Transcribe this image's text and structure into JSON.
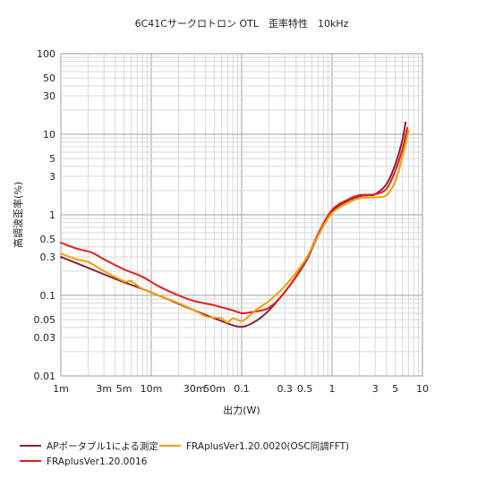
{
  "chart_data": {
    "type": "line",
    "title": "6C41Cサークロトロン OTL　歪率特性　10kHz",
    "xlabel": "出力(W)",
    "ylabel": "高調波歪率(%)",
    "xscale": "log",
    "yscale": "log",
    "xlim": [
      0.001,
      10
    ],
    "ylim": [
      0.01,
      100
    ],
    "grid": true,
    "legend_position": "bottom",
    "x_ticks": [
      {
        "v": 0.001,
        "label": "1m"
      },
      {
        "v": 0.003,
        "label": "3m"
      },
      {
        "v": 0.005,
        "label": "5m"
      },
      {
        "v": 0.01,
        "label": "10m"
      },
      {
        "v": 0.03,
        "label": "30m"
      },
      {
        "v": 0.05,
        "label": "50m"
      },
      {
        "v": 0.1,
        "label": "0.1"
      },
      {
        "v": 0.3,
        "label": "0.3"
      },
      {
        "v": 0.5,
        "label": "0.5"
      },
      {
        "v": 1,
        "label": "1"
      },
      {
        "v": 3,
        "label": "3"
      },
      {
        "v": 5,
        "label": "5"
      },
      {
        "v": 10,
        "label": "10"
      }
    ],
    "y_ticks": [
      {
        "v": 0.01,
        "label": "0.01"
      },
      {
        "v": 0.03,
        "label": "0.03"
      },
      {
        "v": 0.05,
        "label": "0.05"
      },
      {
        "v": 0.1,
        "label": "0.1"
      },
      {
        "v": 0.3,
        "label": "0.3"
      },
      {
        "v": 0.5,
        "label": "0.5"
      },
      {
        "v": 1,
        "label": "1"
      },
      {
        "v": 3,
        "label": "3"
      },
      {
        "v": 5,
        "label": "5"
      },
      {
        "v": 10,
        "label": "10"
      },
      {
        "v": 30,
        "label": "30"
      },
      {
        "v": 50,
        "label": "50"
      },
      {
        "v": 100,
        "label": "100"
      }
    ],
    "series": [
      {
        "name": "APポータブル1による測定",
        "color": "#8b2232",
        "points": [
          [
            0.001,
            0.3
          ],
          [
            0.002,
            0.22
          ],
          [
            0.004,
            0.16
          ],
          [
            0.008,
            0.12
          ],
          [
            0.015,
            0.09
          ],
          [
            0.03,
            0.065
          ],
          [
            0.06,
            0.048
          ],
          [
            0.09,
            0.041
          ],
          [
            0.12,
            0.043
          ],
          [
            0.18,
            0.058
          ],
          [
            0.3,
            0.11
          ],
          [
            0.5,
            0.25
          ],
          [
            0.7,
            0.55
          ],
          [
            1,
            1.1
          ],
          [
            1.5,
            1.5
          ],
          [
            2,
            1.7
          ],
          [
            2.5,
            1.75
          ],
          [
            3,
            1.8
          ],
          [
            4,
            2.4
          ],
          [
            5,
            4.2
          ],
          [
            6,
            8.5
          ],
          [
            6.5,
            14
          ]
        ]
      },
      {
        "name": "FRAplusVer1.20.0016",
        "color": "#e81c1c",
        "points": [
          [
            0.001,
            0.45
          ],
          [
            0.0015,
            0.38
          ],
          [
            0.0022,
            0.34
          ],
          [
            0.003,
            0.28
          ],
          [
            0.005,
            0.21
          ],
          [
            0.008,
            0.17
          ],
          [
            0.012,
            0.13
          ],
          [
            0.02,
            0.1
          ],
          [
            0.03,
            0.085
          ],
          [
            0.05,
            0.075
          ],
          [
            0.08,
            0.065
          ],
          [
            0.1,
            0.06
          ],
          [
            0.13,
            0.062
          ],
          [
            0.2,
            0.07
          ],
          [
            0.3,
            0.11
          ],
          [
            0.5,
            0.26
          ],
          [
            0.7,
            0.58
          ],
          [
            1,
            1.15
          ],
          [
            1.5,
            1.55
          ],
          [
            2,
            1.75
          ],
          [
            3,
            1.8
          ],
          [
            4,
            2.1
          ],
          [
            5,
            3.5
          ],
          [
            6,
            6.5
          ],
          [
            6.8,
            12
          ]
        ]
      },
      {
        "name": "FRAplusVer1.20.0020(OSC同調FFT)",
        "color": "#f0a000",
        "points": [
          [
            0.001,
            0.33
          ],
          [
            0.0015,
            0.28
          ],
          [
            0.002,
            0.26
          ],
          [
            0.003,
            0.2
          ],
          [
            0.005,
            0.15
          ],
          [
            0.006,
            0.15
          ],
          [
            0.008,
            0.12
          ],
          [
            0.012,
            0.1
          ],
          [
            0.02,
            0.08
          ],
          [
            0.03,
            0.065
          ],
          [
            0.04,
            0.055
          ],
          [
            0.05,
            0.053
          ],
          [
            0.06,
            0.052
          ],
          [
            0.07,
            0.046
          ],
          [
            0.08,
            0.052
          ],
          [
            0.1,
            0.048
          ],
          [
            0.12,
            0.055
          ],
          [
            0.15,
            0.068
          ],
          [
            0.2,
            0.085
          ],
          [
            0.3,
            0.13
          ],
          [
            0.5,
            0.27
          ],
          [
            0.7,
            0.55
          ],
          [
            1,
            1.05
          ],
          [
            1.5,
            1.4
          ],
          [
            2,
            1.6
          ],
          [
            3,
            1.65
          ],
          [
            4,
            1.75
          ],
          [
            5,
            2.6
          ],
          [
            6,
            5.2
          ],
          [
            7,
            11
          ]
        ]
      }
    ]
  }
}
